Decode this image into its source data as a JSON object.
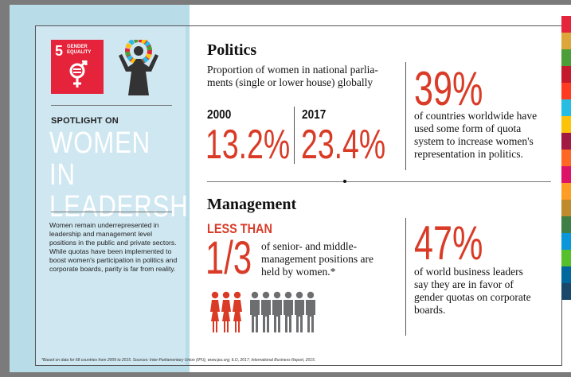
{
  "sdg": {
    "number": "5",
    "label": "GENDER EQUALITY"
  },
  "sidebar": {
    "spotlight": "SPOTLIGHT ON",
    "title_line1": "WOMEN IN",
    "title_line2": "LEADERSHIP",
    "body": "Women remain underrepresented in leadership and management level positions in the public and private sectors. While quotas have been implemented to boost women's participation in politics and corporate boards, parity is far from reality."
  },
  "politics": {
    "heading": "Politics",
    "desc_line1": "Proportion of women in national parlia-",
    "desc_line2": "ments (single or lower house) globally",
    "year1": "2000",
    "value1": "13.2%",
    "year2": "2017",
    "value2": "23.4%",
    "stat_value": "39%",
    "stat_line1": "of countries worldwide have",
    "stat_line2": "used some form of quota",
    "stat_line3": "system to increase women's",
    "stat_line4": "representation in politics."
  },
  "management": {
    "heading": "Management",
    "less_than": "LESS THAN",
    "fraction": "1/3",
    "desc_line1": "of senior- and middle-",
    "desc_line2": "management positions are",
    "desc_line3": "held by women.*",
    "stat_value": "47%",
    "stat_line1": "of world business leaders",
    "stat_line2": "say they are in favor of",
    "stat_line3": "gender quotas on corporate",
    "stat_line4": "boards.",
    "people_women": 3,
    "people_men": 6
  },
  "footnote": "*Based on data for 68 countries from 2009 to 2015.  Sources: Inter-Parliamentary Union (IPU), www.ipu.org; ILO, 2017; International Business Report, 2015.",
  "colors": {
    "accent_red": "#d93b27",
    "sdg_red": "#e5243b",
    "panel_blue": "#b9dce9",
    "inner_blue": "#cfe7f1",
    "people_grey": "#6d6e70"
  },
  "sdg_stripe_colors": [
    "#e5243b",
    "#dda63a",
    "#4c9f38",
    "#c5192d",
    "#ff3a21",
    "#26bde2",
    "#fcc30b",
    "#a21942",
    "#fd6925",
    "#dd1367",
    "#fd9d24",
    "#bf8b2e",
    "#3f7e44",
    "#0a97d9",
    "#56c02b",
    "#00689d",
    "#19486a"
  ]
}
